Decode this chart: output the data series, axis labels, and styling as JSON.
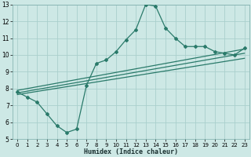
{
  "xlabel": "Humidex (Indice chaleur)",
  "bg_color": "#cde8e5",
  "grid_color": "#aacfcc",
  "line_color": "#2a7a6a",
  "xlim": [
    -0.5,
    23.5
  ],
  "ylim": [
    5,
    13
  ],
  "xticks": [
    0,
    1,
    2,
    3,
    4,
    5,
    6,
    7,
    8,
    9,
    10,
    11,
    12,
    13,
    14,
    15,
    16,
    17,
    18,
    19,
    20,
    21,
    22,
    23
  ],
  "yticks": [
    5,
    6,
    7,
    8,
    9,
    10,
    11,
    12,
    13
  ],
  "curve1_x": [
    0,
    1,
    2,
    3,
    4,
    5,
    6,
    7,
    8,
    9,
    10,
    11,
    12,
    13,
    14,
    15,
    16,
    17,
    18,
    19,
    20,
    21,
    22,
    23
  ],
  "curve1_y": [
    7.8,
    7.5,
    7.2,
    6.5,
    5.8,
    5.4,
    5.6,
    8.2,
    9.5,
    9.7,
    10.2,
    10.9,
    11.5,
    13.0,
    12.9,
    11.6,
    11.0,
    10.5,
    10.5,
    10.5,
    10.2,
    10.1,
    10.0,
    10.4
  ],
  "line1_x": [
    0,
    23
  ],
  "line1_y": [
    7.9,
    10.35
  ],
  "line2_x": [
    0,
    23
  ],
  "line2_y": [
    7.65,
    9.8
  ],
  "line3_x": [
    0,
    23
  ],
  "line3_y": [
    7.75,
    10.1
  ]
}
